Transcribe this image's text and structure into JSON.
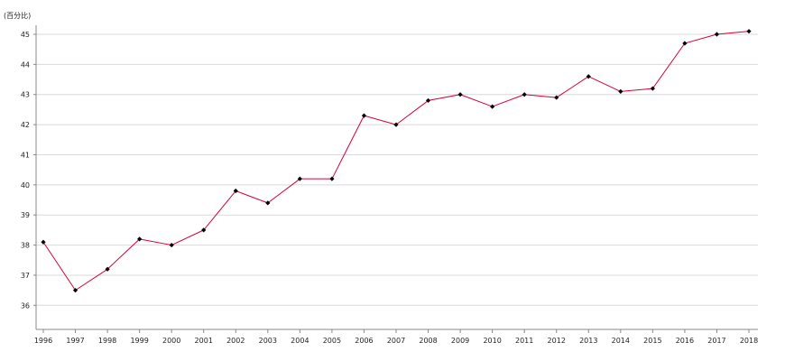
{
  "chart_data": {
    "type": "line",
    "title": "",
    "xlabel": "",
    "ylabel": "(百分比)",
    "x": [
      "1996",
      "1997",
      "1998",
      "1999",
      "2000",
      "2001",
      "2002",
      "2003",
      "2004",
      "2005",
      "2006",
      "2007",
      "2008",
      "2009",
      "2010",
      "2011",
      "2012",
      "2013",
      "2014",
      "2015",
      "2016",
      "2017",
      "2018"
    ],
    "series": [
      {
        "values": [
          38.1,
          36.5,
          37.2,
          38.2,
          38.0,
          38.5,
          39.8,
          39.4,
          40.2,
          40.2,
          42.3,
          42.0,
          42.8,
          43.0,
          42.6,
          43.0,
          42.9,
          43.6,
          43.1,
          43.2,
          44.7,
          45.0,
          45.1
        ]
      }
    ],
    "yticks": [
      36,
      37,
      38,
      39,
      40,
      41,
      42,
      43,
      44,
      45
    ],
    "ylim": [
      35.2,
      45.3
    ],
    "grid": true,
    "legend": "none",
    "line_color": "#d6003a",
    "marker_color": "#000000",
    "grid_color": "#d9d9d9",
    "axis_color": "#888888"
  }
}
